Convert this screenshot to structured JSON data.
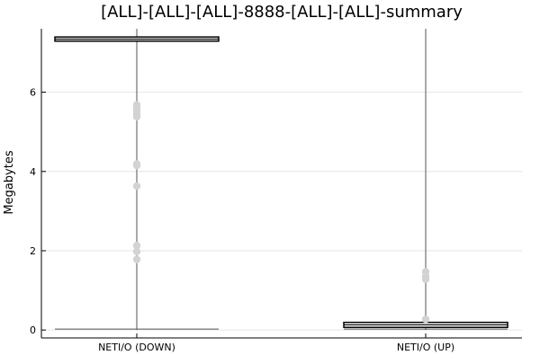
{
  "chart_data": {
    "type": "box",
    "title": "[ALL]-[ALL]-[ALL]-8888-[ALL]-[ALL]-summary",
    "xlabel": "",
    "ylabel": "Megabytes",
    "categories": [
      "NETI/O (DOWN)",
      "NETI/O (UP)"
    ],
    "ylim": [
      -0.2,
      7.6
    ],
    "yticks": [
      0,
      2,
      4,
      6
    ],
    "grid": true,
    "legend": "none",
    "boxes": [
      {
        "category": "NETI/O (DOWN)",
        "min": 0,
        "q1": 7.31,
        "median": 7.34,
        "q3": 7.37,
        "max": 7.6,
        "outliers": [
          5.68,
          5.6,
          5.52,
          5.45,
          5.38,
          4.19,
          4.15,
          3.63,
          2.13,
          1.98,
          1.78
        ]
      },
      {
        "category": "NETI/O (UP)",
        "min": 0,
        "q1": 0.09,
        "median": 0.13,
        "q3": 0.17,
        "max": 7.6,
        "outliers": [
          1.47,
          1.35,
          1.28,
          0.27
        ]
      }
    ],
    "colors": {
      "box_line": "#000000",
      "whisker": "#555555",
      "outlier": "#d3d3d3",
      "grid": "#e6e6e6",
      "axis": "#000000",
      "text": "#000000"
    }
  }
}
